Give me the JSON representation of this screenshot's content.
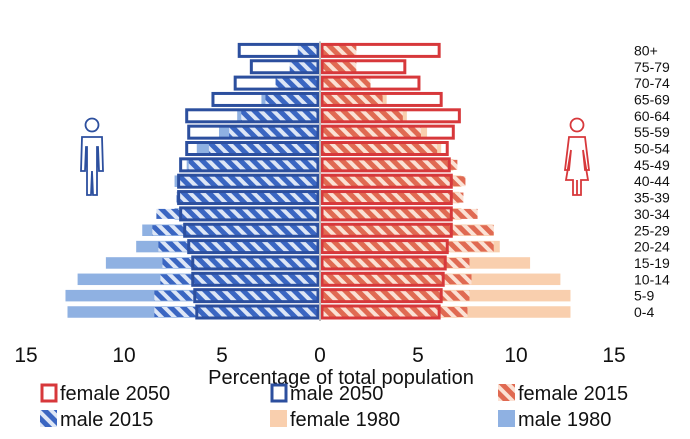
{
  "chart_data": {
    "type": "bar",
    "orientation": "horizontal-diverging",
    "xlabel": "Percentage of total population",
    "xlim": [
      -15,
      15
    ],
    "xticks": [
      15,
      10,
      5,
      0,
      5,
      10,
      15
    ],
    "categories": [
      "0-4",
      "5-9",
      "10-14",
      "15-19",
      "20-24",
      "25-29",
      "30-34",
      "35-39",
      "40-44",
      "45-49",
      "50-54",
      "55-59",
      "60-64",
      "65-69",
      "70-74",
      "75-79",
      "80+"
    ],
    "series": [
      {
        "name": "female 2050",
        "side": "female",
        "year": 2050,
        "color": "#d7383b",
        "style": "outline",
        "values": [
          5.8,
          5.9,
          6.0,
          6.1,
          6.2,
          6.4,
          6.4,
          6.4,
          6.4,
          6.3,
          6.2,
          6.5,
          6.8,
          5.9,
          4.8,
          4.1,
          5.8
        ]
      },
      {
        "name": "male 2050",
        "side": "male",
        "year": 2050,
        "color": "#2c4f9e",
        "style": "outline",
        "values": [
          6.0,
          6.1,
          6.2,
          6.2,
          6.4,
          6.6,
          6.8,
          6.9,
          6.9,
          6.8,
          6.5,
          6.4,
          6.5,
          5.2,
          4.1,
          3.3,
          3.9
        ]
      },
      {
        "name": "female 2015",
        "side": "female",
        "year": 2015,
        "color": "#e06a52",
        "style": "hatched",
        "values": [
          7.3,
          7.4,
          7.5,
          7.4,
          8.6,
          8.6,
          7.8,
          7.1,
          7.2,
          6.8,
          5.8,
          5.0,
          4.1,
          3.1,
          2.5,
          1.8,
          1.8
        ]
      },
      {
        "name": "male 2015",
        "side": "male",
        "year": 2015,
        "color": "#3a66c2",
        "style": "hatched",
        "values": [
          8.2,
          8.2,
          7.9,
          7.8,
          8.0,
          8.3,
          8.1,
          7.1,
          7.0,
          6.5,
          5.5,
          4.5,
          3.9,
          2.7,
          2.2,
          1.5,
          1.1
        ]
      },
      {
        "name": "female 1980",
        "side": "female",
        "year": 1980,
        "color": "#f9cfae",
        "style": "solid",
        "values": [
          12.4,
          12.4,
          11.9,
          10.4,
          8.9,
          8.6,
          7.0,
          6.9,
          7.0,
          6.6,
          6.0,
          5.3,
          4.3,
          3.3,
          2.4,
          1.6,
          1.4
        ]
      },
      {
        "name": "male 1980",
        "side": "male",
        "year": 1980,
        "color": "#8fb1e2",
        "style": "solid",
        "values": [
          12.5,
          12.6,
          12.0,
          10.6,
          9.1,
          8.8,
          7.2,
          7.1,
          7.2,
          6.6,
          6.1,
          5.0,
          4.1,
          2.9,
          1.9,
          1.1,
          0.7
        ]
      }
    ],
    "legend": {
      "placement": "bottom",
      "entries": [
        "female 2050",
        "male 2050",
        "female 2015",
        "male 2015",
        "female 1980",
        "male 1980"
      ]
    },
    "icons": {
      "male": "male-person-icon",
      "female": "female-person-icon"
    },
    "grid": false
  }
}
